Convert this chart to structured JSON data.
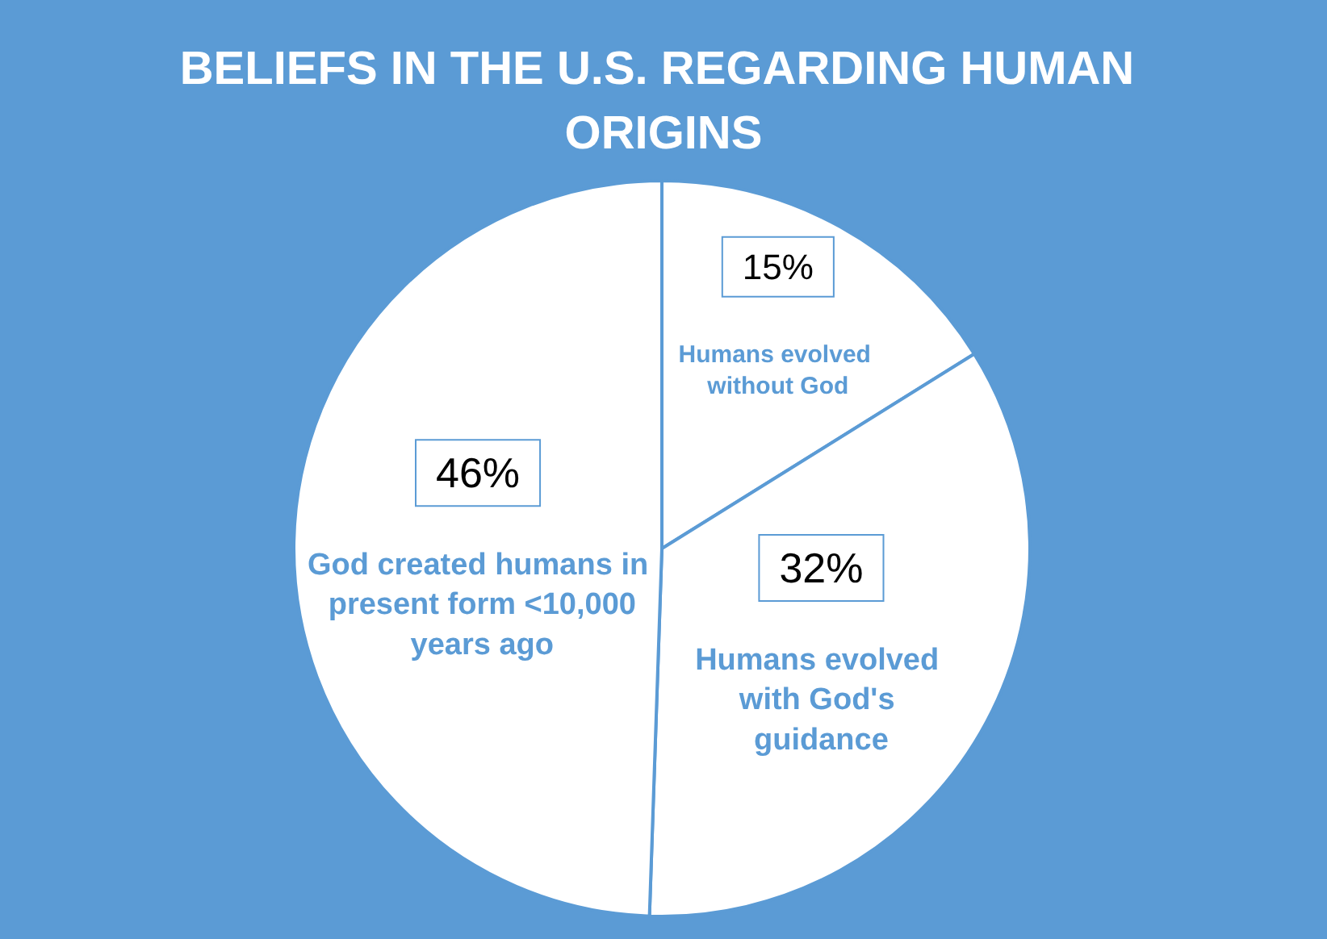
{
  "chart_data": {
    "type": "pie",
    "title": "BELIEFS IN THE U.S. REGARDING HUMAN ORIGINS",
    "categories": [
      "Humans evolved without God",
      "Humans evolved with God's guidance",
      "God created humans in present form <10,000 years ago"
    ],
    "values": [
      15,
      32,
      46
    ],
    "value_labels": [
      "15%",
      "32%",
      "46%"
    ],
    "colors": [
      "#ffffff",
      "#ffffff",
      "#ffffff"
    ],
    "legend": false
  }
}
